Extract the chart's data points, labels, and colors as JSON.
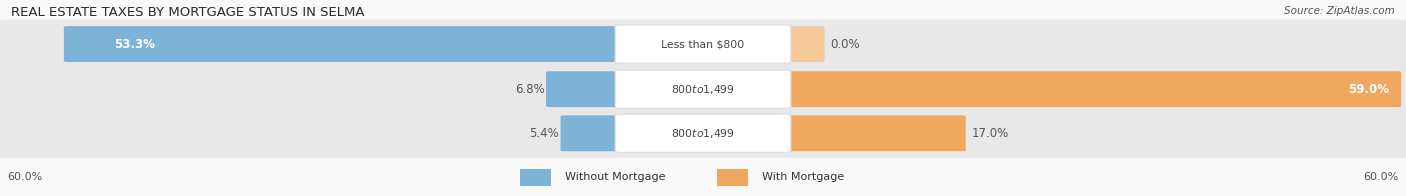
{
  "title": "REAL ESTATE TAXES BY MORTGAGE STATUS IN SELMA",
  "source": "Source: ZipAtlas.com",
  "rows": [
    {
      "label": "Less than $800",
      "without_mortgage": 53.3,
      "with_mortgage": 0.0,
      "without_pct": "53.3%",
      "with_pct": "0.0%"
    },
    {
      "label": "$800 to $1,499",
      "without_mortgage": 6.8,
      "with_mortgage": 59.0,
      "without_pct": "6.8%",
      "with_pct": "59.0%"
    },
    {
      "label": "$800 to $1,499",
      "without_mortgage": 5.4,
      "with_mortgage": 17.0,
      "without_pct": "5.4%",
      "with_pct": "17.0%"
    }
  ],
  "axis_max": 60.0,
  "axis_label": "60.0%",
  "color_without": "#7eb3d8",
  "color_with": "#f0a860",
  "color_with_light": "#f5c99a",
  "background_bar": "#e8e8e8",
  "background_fig": "#f9f9f9",
  "title_fontsize": 9.5,
  "legend_without": "Without Mortgage",
  "legend_with": "With Mortgage"
}
